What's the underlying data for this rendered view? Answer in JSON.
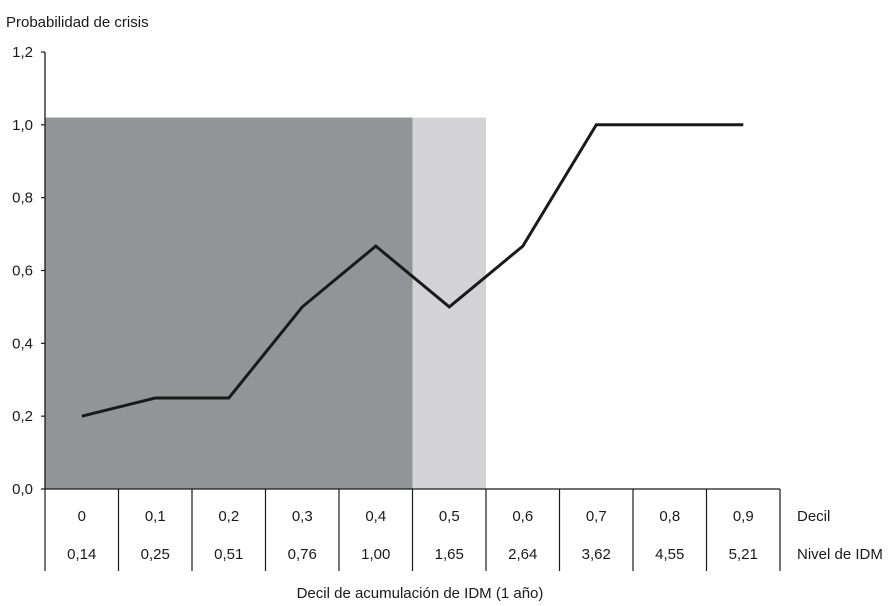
{
  "chart_data": {
    "type": "line",
    "title": "",
    "ylabel": "Probabilidad de crisis",
    "xlabel": "Decil de acumulación de IDM (1 año)",
    "ylim": [
      0,
      1.2
    ],
    "y_ticks": [
      "0,0",
      "0,2",
      "0,4",
      "0,6",
      "0,8",
      "1,0",
      "1,2"
    ],
    "y_tick_values": [
      0,
      0.2,
      0.4,
      0.6,
      0.8,
      1.0,
      1.2
    ],
    "categories": [
      "0",
      "0,1",
      "0,2",
      "0,3",
      "0,4",
      "0,5",
      "0,6",
      "0,7",
      "0,8",
      "0,9"
    ],
    "table_rows": [
      {
        "label": "Decil",
        "cells": [
          "0",
          "0,1",
          "0,2",
          "0,3",
          "0,4",
          "0,5",
          "0,6",
          "0,7",
          "0,8",
          "0,9"
        ]
      },
      {
        "label": "Nivel de IDM",
        "cells": [
          "0,14",
          "0,25",
          "0,51",
          "0,76",
          "1,00",
          "1,65",
          "2,64",
          "3,62",
          "4,55",
          "5,21"
        ]
      }
    ],
    "series": [
      {
        "values": [
          0.2,
          0.25,
          0.25,
          0.5,
          0.667,
          0.5,
          0.667,
          1.0,
          1.0,
          1.0
        ],
        "color": "#1a1a1a"
      }
    ],
    "shaded_regions": [
      {
        "from_category": 0,
        "to_category": 5,
        "top_value": 1.02,
        "color": "#939498"
      },
      {
        "from_category": 5,
        "to_category": 6,
        "top_value": 1.02,
        "color": "#d3d3d5"
      }
    ],
    "grid": false,
    "legend": "none"
  }
}
